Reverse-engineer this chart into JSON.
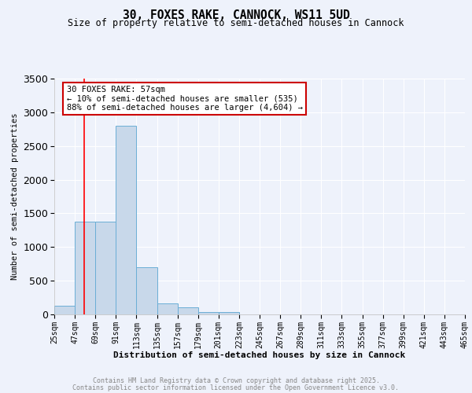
{
  "title": "30, FOXES RAKE, CANNOCK, WS11 5UD",
  "subtitle": "Size of property relative to semi-detached houses in Cannock",
  "xlabel": "Distribution of semi-detached houses by size in Cannock",
  "ylabel": "Number of semi-detached properties",
  "bin_labels": [
    "25sqm",
    "47sqm",
    "69sqm",
    "91sqm",
    "113sqm",
    "135sqm",
    "157sqm",
    "179sqm",
    "201sqm",
    "223sqm",
    "245sqm",
    "267sqm",
    "289sqm",
    "311sqm",
    "333sqm",
    "355sqm",
    "377sqm",
    "399sqm",
    "421sqm",
    "443sqm",
    "465sqm"
  ],
  "bin_edges": [
    25,
    47,
    69,
    91,
    113,
    135,
    157,
    179,
    201,
    223,
    245,
    267,
    289,
    311,
    333,
    355,
    377,
    399,
    421,
    443,
    465
  ],
  "bar_heights": [
    130,
    1380,
    1380,
    2800,
    700,
    160,
    100,
    40,
    30,
    0,
    0,
    0,
    0,
    0,
    0,
    0,
    0,
    0,
    0,
    0
  ],
  "bar_color": "#c8d8ea",
  "bar_edge_color": "#6baed6",
  "red_line_x": 57,
  "ylim": [
    0,
    3500
  ],
  "yticks": [
    0,
    500,
    1000,
    1500,
    2000,
    2500,
    3000,
    3500
  ],
  "annotation_line1": "30 FOXES RAKE: 57sqm",
  "annotation_line2": "← 10% of semi-detached houses are smaller (535)",
  "annotation_line3": "88% of semi-detached houses are larger (4,604) →",
  "footnote1": "Contains HM Land Registry data © Crown copyright and database right 2025.",
  "footnote2": "Contains public sector information licensed under the Open Government Licence v3.0.",
  "bg_color": "#eef2fb",
  "plot_bg_color": "#eef2fb",
  "grid_color": "#ffffff",
  "annotation_box_color": "#ffffff",
  "annotation_box_edge": "#cc0000",
  "title_fontsize": 10.5,
  "subtitle_fontsize": 8.5,
  "ylabel_fontsize": 7.5,
  "xlabel_fontsize": 8,
  "tick_fontsize": 7,
  "annot_fontsize": 7.5,
  "footnote_fontsize": 6
}
